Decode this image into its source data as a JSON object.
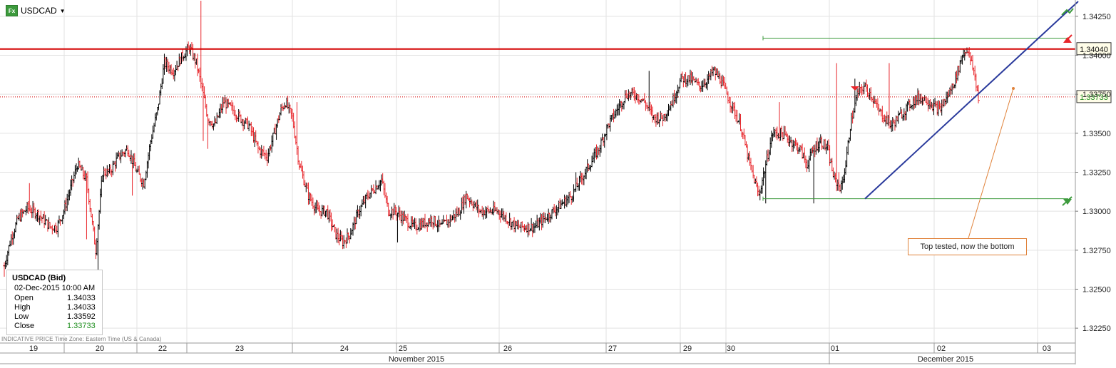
{
  "symbol": {
    "name": "USDCAD"
  },
  "info_panel": {
    "title": "USDCAD (Bid)",
    "datetime": "02-Dec-2015 10:00 AM",
    "rows": [
      {
        "label": "Open",
        "value": "1.34033"
      },
      {
        "label": "High",
        "value": "1.34033"
      },
      {
        "label": "Low",
        "value": "1.33592"
      },
      {
        "label": "Close",
        "value": "1.33733"
      }
    ]
  },
  "footer_note": "INDICATIVE PRICE   Time Zone: Eastern Time (US & Canada)",
  "annotation_text": "Top tested, now the bottom",
  "price_tags": {
    "resistance": "1.34040",
    "current": "1.33733"
  },
  "colors": {
    "up": "#000000",
    "down": "#e8262b",
    "resistance": "#d40000",
    "trendline": "#2a3a9c",
    "channel": "#3c9a3c",
    "annotation": "#e0823a",
    "current_tag_text": "#1f8f1f"
  },
  "chart_data": {
    "type": "ohlc",
    "ylim": [
      1.3215,
      1.3435
    ],
    "y_ticks": [
      "1.34250",
      "1.34000",
      "1.33750",
      "1.33500",
      "1.33250",
      "1.33000",
      "1.32750",
      "1.32500",
      "1.32250"
    ],
    "day_labels": [
      "19",
      "20",
      "22",
      "23",
      "24",
      "25",
      "26",
      "27",
      "29",
      "30",
      "01",
      "02",
      "03"
    ],
    "month_labels": [
      "November 2015",
      "December 2015"
    ],
    "grid": true,
    "resistance_level": 1.3404,
    "current_price": 1.33733,
    "channel_levels": {
      "upper": 1.3411,
      "lower": 1.3308
    },
    "trendline": {
      "start": [
        "01-Dec",
        1.3308
      ],
      "end": [
        "03-Dec",
        1.343
      ]
    },
    "annotation_target": [
      "02-Dec",
      1.338
    ],
    "anchors": [
      [
        0,
        1.3265
      ],
      [
        6,
        1.3283
      ],
      [
        12,
        1.3295
      ],
      [
        20,
        1.3302
      ],
      [
        30,
        1.3298
      ],
      [
        40,
        1.329
      ],
      [
        46,
        1.329
      ],
      [
        52,
        1.33
      ],
      [
        56,
        1.331
      ],
      [
        64,
        1.333
      ],
      [
        72,
        1.332
      ],
      [
        80,
        1.3275
      ],
      [
        86,
        1.3325
      ],
      [
        92,
        1.3325
      ],
      [
        100,
        1.3335
      ],
      [
        108,
        1.334
      ],
      [
        116,
        1.3325
      ],
      [
        122,
        1.3318
      ],
      [
        128,
        1.3345
      ],
      [
        134,
        1.3365
      ],
      [
        140,
        1.3395
      ],
      [
        148,
        1.339
      ],
      [
        156,
        1.34
      ],
      [
        162,
        1.3405
      ],
      [
        168,
        1.3395
      ],
      [
        174,
        1.3375
      ],
      [
        178,
        1.336
      ],
      [
        184,
        1.3355
      ],
      [
        192,
        1.337
      ],
      [
        200,
        1.3365
      ],
      [
        206,
        1.336
      ],
      [
        214,
        1.3355
      ],
      [
        222,
        1.334
      ],
      [
        230,
        1.3335
      ],
      [
        236,
        1.335
      ],
      [
        242,
        1.3365
      ],
      [
        246,
        1.337
      ],
      [
        252,
        1.336
      ],
      [
        258,
        1.333
      ],
      [
        266,
        1.331
      ],
      [
        274,
        1.33
      ],
      [
        282,
        1.33
      ],
      [
        290,
        1.3285
      ],
      [
        296,
        1.328
      ],
      [
        302,
        1.3285
      ],
      [
        310,
        1.33
      ],
      [
        318,
        1.331
      ],
      [
        324,
        1.3315
      ],
      [
        330,
        1.332
      ],
      [
        336,
        1.33
      ],
      [
        342,
        1.33
      ],
      [
        350,
        1.3295
      ],
      [
        358,
        1.329
      ],
      [
        366,
        1.3292
      ],
      [
        374,
        1.3295
      ],
      [
        382,
        1.329
      ],
      [
        390,
        1.3295
      ],
      [
        398,
        1.33
      ],
      [
        404,
        1.331
      ],
      [
        410,
        1.3305
      ],
      [
        416,
        1.33
      ],
      [
        424,
        1.33
      ],
      [
        432,
        1.33
      ],
      [
        440,
        1.3295
      ],
      [
        448,
        1.329
      ],
      [
        456,
        1.329
      ],
      [
        464,
        1.329
      ],
      [
        472,
        1.3295
      ],
      [
        480,
        1.33
      ],
      [
        488,
        1.3305
      ],
      [
        496,
        1.331
      ],
      [
        504,
        1.332
      ],
      [
        512,
        1.333
      ],
      [
        520,
        1.334
      ],
      [
        528,
        1.3355
      ],
      [
        536,
        1.3365
      ],
      [
        544,
        1.3375
      ],
      [
        552,
        1.3375
      ],
      [
        560,
        1.337
      ],
      [
        568,
        1.336
      ],
      [
        576,
        1.336
      ],
      [
        584,
        1.337
      ],
      [
        592,
        1.3385
      ],
      [
        600,
        1.3385
      ],
      [
        608,
        1.338
      ],
      [
        616,
        1.3385
      ],
      [
        620,
        1.339
      ],
      [
        626,
        1.3385
      ],
      [
        632,
        1.3375
      ],
      [
        638,
        1.3365
      ],
      [
        644,
        1.3355
      ],
      [
        652,
        1.333
      ],
      [
        660,
        1.331
      ],
      [
        666,
        1.333
      ],
      [
        672,
        1.335
      ],
      [
        680,
        1.335
      ],
      [
        688,
        1.3345
      ],
      [
        696,
        1.334
      ],
      [
        702,
        1.333
      ],
      [
        708,
        1.334
      ],
      [
        714,
        1.3345
      ],
      [
        720,
        1.334
      ],
      [
        726,
        1.332
      ],
      [
        732,
        1.3315
      ],
      [
        736,
        1.333
      ],
      [
        740,
        1.3355
      ],
      [
        746,
        1.3375
      ],
      [
        752,
        1.338
      ],
      [
        758,
        1.3375
      ],
      [
        764,
        1.3365
      ],
      [
        770,
        1.336
      ],
      [
        776,
        1.3355
      ],
      [
        782,
        1.336
      ],
      [
        788,
        1.3365
      ],
      [
        794,
        1.337
      ],
      [
        800,
        1.3373
      ],
      [
        806,
        1.3372
      ],
      [
        812,
        1.3368
      ],
      [
        818,
        1.3365
      ],
      [
        826,
        1.3375
      ],
      [
        832,
        1.3385
      ],
      [
        838,
        1.34
      ],
      [
        842,
        1.3404
      ],
      [
        848,
        1.339
      ],
      [
        852,
        1.3373
      ]
    ],
    "spikes": [
      [
        0,
        1.3258
      ],
      [
        22,
        1.3318
      ],
      [
        72,
        1.3282
      ],
      [
        82,
        1.3262
      ],
      [
        112,
        1.331
      ],
      [
        172,
        1.3435
      ],
      [
        174,
        1.3345
      ],
      [
        178,
        1.334
      ],
      [
        256,
        1.337
      ],
      [
        344,
        1.328
      ],
      [
        500,
        1.3325
      ],
      [
        564,
        1.339
      ],
      [
        666,
        1.3305
      ],
      [
        678,
        1.337
      ],
      [
        708,
        1.3305
      ],
      [
        728,
        1.3395
      ],
      [
        730,
        1.3325
      ],
      [
        744,
        1.3385
      ],
      [
        774,
        1.3395
      ],
      [
        842,
        1.3405
      ]
    ],
    "resistance_x_range": [
      1070,
      1498
    ],
    "channel_x_range": [
      1070,
      1498
    ]
  }
}
